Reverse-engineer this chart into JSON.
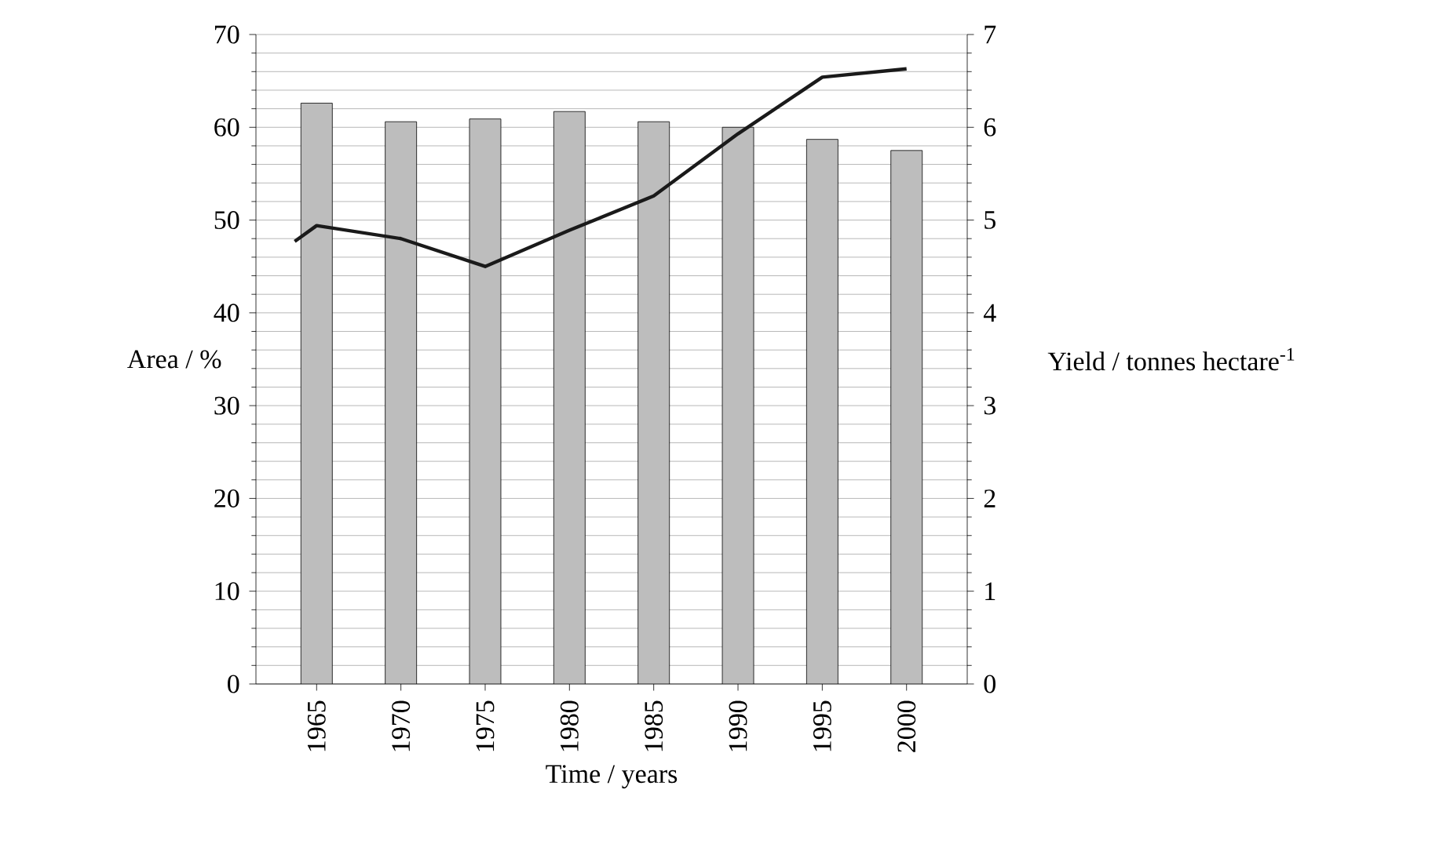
{
  "chart_data": {
    "type": "bar",
    "xlabel": "Time / years",
    "ylabel": "Area / %",
    "y2label": "Yield / tonnes hectare$^{-1}$",
    "x": [
      1965,
      1970,
      1975,
      1980,
      1985,
      1990,
      1995,
      2000
    ],
    "xlim": [
      1961.4,
      2003.6
    ],
    "xticks": [
      1965,
      1970,
      1975,
      1980,
      1985,
      1990,
      1995,
      2000
    ],
    "ylim": [
      0,
      70
    ],
    "yticks": [
      0,
      10,
      20,
      30,
      40,
      50,
      60,
      70
    ],
    "y2lim": [
      0,
      7
    ],
    "y2ticks": [
      0,
      1,
      2,
      3,
      4,
      5,
      6,
      7
    ],
    "grid": "y",
    "series": [
      {
        "color": "#bdbdbd",
        "values": [
          62.6,
          60.6,
          60.9,
          61.7,
          60.6,
          60.0,
          58.7,
          57.5
        ]
      },
      {
        "type": "line",
        "axis": "y2",
        "color": "#1a1a1a",
        "x": [
          1963.7,
          1965,
          1970,
          1975,
          1980,
          1985,
          1990,
          1995,
          2000
        ],
        "values": [
          4.77,
          4.94,
          4.8,
          4.5,
          4.89,
          5.26,
          5.93,
          6.54,
          6.63
        ]
      }
    ]
  }
}
